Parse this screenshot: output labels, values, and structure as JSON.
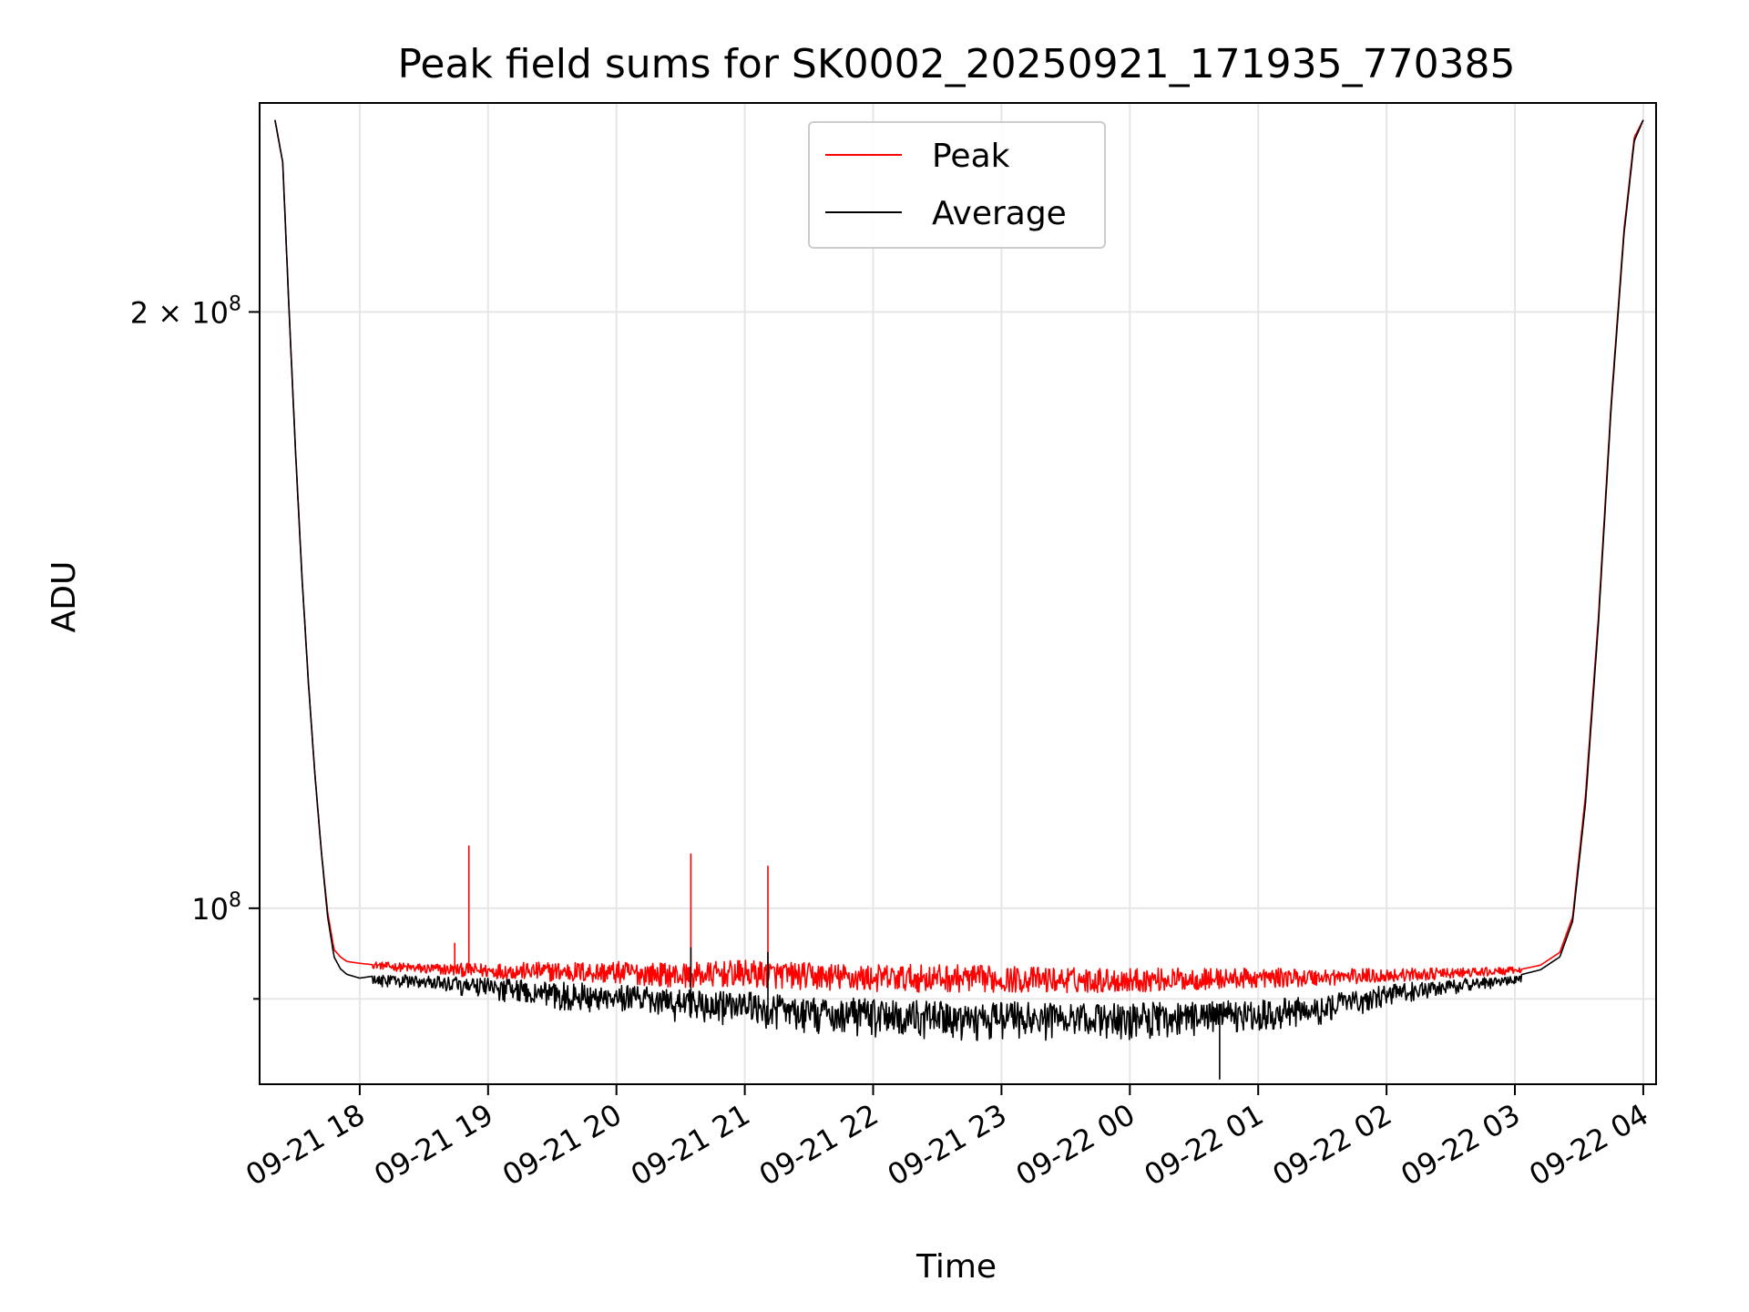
{
  "chart_data": {
    "type": "line",
    "title": "Peak field sums for SK0002_20250921_171935_770385",
    "xlabel": "Time",
    "ylabel": "ADU",
    "yscale": "log",
    "xlim": [
      -0.78,
      10.1
    ],
    "ylim": [
      81500000,
      255000000
    ],
    "x_unit": "hours after 2025-09-21 18:00",
    "x_ticks": [
      {
        "value": 0,
        "label": "09-21 18"
      },
      {
        "value": 1,
        "label": "09-21 19"
      },
      {
        "value": 2,
        "label": "09-21 20"
      },
      {
        "value": 3,
        "label": "09-21 21"
      },
      {
        "value": 4,
        "label": "09-21 22"
      },
      {
        "value": 5,
        "label": "09-21 23"
      },
      {
        "value": 6,
        "label": "09-22 00"
      },
      {
        "value": 7,
        "label": "09-22 01"
      },
      {
        "value": 8,
        "label": "09-22 02"
      },
      {
        "value": 9,
        "label": "09-22 03"
      },
      {
        "value": 10,
        "label": "09-22 04"
      }
    ],
    "y_ticks": [
      {
        "value": 100000000,
        "label": "10",
        "exp": "8",
        "prefix": ""
      },
      {
        "value": 200000000,
        "label": "10",
        "exp": "8",
        "prefix": "2 × "
      }
    ],
    "y_minor_ticks": [
      90000000
    ],
    "grid": true,
    "legend": {
      "position": "top-center",
      "entries": [
        "Peak",
        "Average"
      ]
    },
    "colors": {
      "Peak": "#ff0000",
      "Average": "#000000"
    },
    "series": [
      {
        "name": "Peak",
        "x": [
          -0.66,
          -0.6,
          -0.55,
          -0.5,
          -0.45,
          -0.4,
          -0.35,
          -0.3,
          -0.25,
          -0.2,
          -0.15,
          -0.1,
          0.0,
          0.2,
          0.5,
          1.0,
          1.5,
          2.0,
          2.5,
          3.0,
          3.5,
          4.0,
          4.5,
          5.0,
          5.5,
          6.0,
          6.5,
          7.0,
          7.5,
          8.0,
          8.5,
          9.0,
          9.2,
          9.35,
          9.45,
          9.55,
          9.65,
          9.75,
          9.85,
          9.93,
          10.0
        ],
        "values": [
          250000000,
          238000000,
          200000000,
          170000000,
          147000000,
          130000000,
          117000000,
          107000000,
          99500000,
          95300000,
          94500000,
          94000000,
          93800000,
          93500000,
          93200000,
          93000000,
          92900000,
          92800000,
          92500000,
          92700000,
          92400000,
          92200000,
          92200000,
          92100000,
          92000000,
          92000000,
          92100000,
          92200000,
          92300000,
          92500000,
          92700000,
          93000000,
          93600000,
          95000000,
          99000000,
          114000000,
          140000000,
          180000000,
          220000000,
          245000000,
          250000000
        ],
        "noise_start_x": 0.1,
        "noise_end_x": 9.05,
        "noise_amplitude": [
          0.004,
          0.012,
          0.016,
          0.016,
          0.014,
          0.01,
          0.004
        ],
        "spikes": [
          {
            "x": 0.74,
            "value": 96000000
          },
          {
            "x": 0.85,
            "value": 107500000
          },
          {
            "x": 2.58,
            "value": 106500000
          },
          {
            "x": 3.18,
            "value": 105000000
          }
        ]
      },
      {
        "name": "Average",
        "x": [
          -0.66,
          -0.6,
          -0.55,
          -0.5,
          -0.45,
          -0.4,
          -0.35,
          -0.3,
          -0.25,
          -0.2,
          -0.15,
          -0.1,
          0.0,
          0.2,
          0.5,
          1.0,
          1.5,
          2.0,
          2.5,
          3.0,
          3.5,
          4.0,
          4.5,
          5.0,
          5.5,
          6.0,
          6.5,
          7.0,
          7.5,
          8.0,
          8.5,
          9.0,
          9.2,
          9.35,
          9.45,
          9.55,
          9.65,
          9.75,
          9.85,
          9.93,
          10.0
        ],
        "values": [
          250000000,
          238000000,
          200000000,
          170000000,
          147000000,
          130000000,
          117000000,
          107000000,
          99000000,
          94500000,
          93200000,
          92600000,
          92200000,
          92600000,
          92500000,
          92200000,
          91800000,
          91500000,
          91000000,
          90800000,
          90300000,
          90000000,
          89800000,
          89700000,
          89600000,
          89600000,
          89700000,
          89900000,
          90300000,
          91500000,
          92100000,
          92400000,
          93100000,
          94500000,
          98500000,
          113000000,
          139000000,
          179000000,
          219000000,
          244000000,
          250000000
        ],
        "noise_start_x": 0.1,
        "noise_end_x": 9.05,
        "noise_amplitude": [
          0.008,
          0.02,
          0.026,
          0.028,
          0.026,
          0.02,
          0.006
        ],
        "spikes": [
          {
            "x": 2.58,
            "value": 95500000
          },
          {
            "x": 3.18,
            "value": 95000000
          },
          {
            "x": 6.7,
            "value": 82000000
          }
        ]
      }
    ]
  }
}
